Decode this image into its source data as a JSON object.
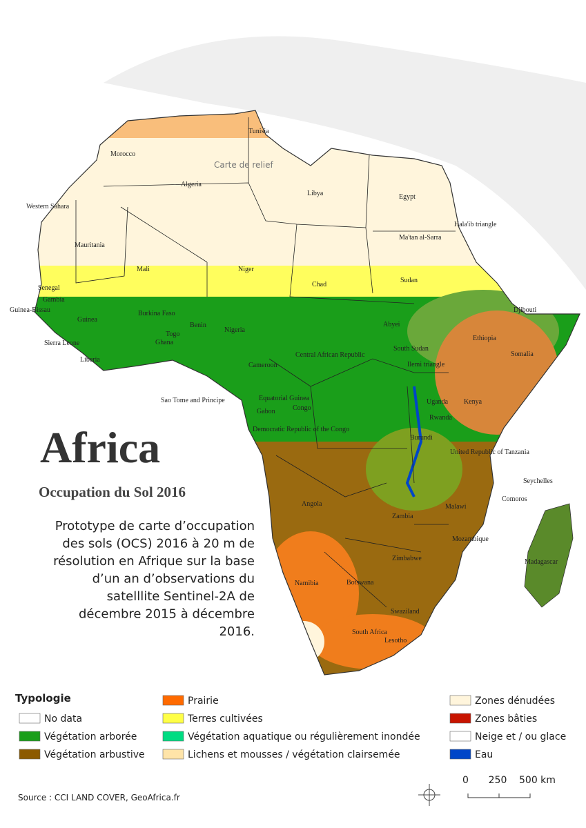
{
  "map": {
    "title": "Africa",
    "subtitle": "Occupation du Sol 2016",
    "description": [
      "Prototype de carte d’occupation",
      "des sols (OCS) 2016 à 20 m de",
      "résolution en Afrique sur la base",
      "d’un an d’observations du",
      "satelllite  Sentinel-2A de",
      "décembre 2015 à décembre",
      "2016."
    ],
    "relief_label": "Carte de relief",
    "labels": [
      "Tunisia",
      "Morocco",
      "Algeria",
      "Libya",
      "Egypt",
      "Western Sahara",
      "Mauritania",
      "Mali",
      "Niger",
      "Chad",
      "Sudan",
      "Ma'tan al-Sarra",
      "Hala'ib triangle",
      "Senegal",
      "Gambia",
      "Guinea-Bissau",
      "Guinea",
      "Sierra Leone",
      "Liberia",
      "Burkina Faso",
      "Ghana",
      "Togo",
      "Benin",
      "Nigeria",
      "Cameroon",
      "Central African Republic",
      "Abyei",
      "South Sudan",
      "Ilemi triangle",
      "Ethiopia",
      "Djibouti",
      "Somalia",
      "Kenya",
      "Uganda",
      "Rwanda",
      "Burundi",
      "Sao Tome and Principe",
      "Equatorial Guinea",
      "Gabon",
      "Congo",
      "Democratic Republic of the Congo",
      "United Republic of Tanzania",
      "Seychelles",
      "Comoros",
      "Malawi",
      "Mozambique",
      "Zambia",
      "Angola",
      "Zimbabwe",
      "Namibia",
      "Botswana",
      "Swaziland",
      "South Africa",
      "Lesotho",
      "Madagascar"
    ],
    "legend": {
      "title": "Typologie",
      "items": [
        {
          "name": "No data",
          "color": "#ffffff"
        },
        {
          "name": "Végétation arborée",
          "color": "#1a9e1a"
        },
        {
          "name": "Végétation arbustive",
          "color": "#8c5a00"
        },
        {
          "name": "Prairie",
          "color": "#ff6a00"
        },
        {
          "name": "Terres cultivées",
          "color": "#ffff46"
        },
        {
          "name": "Végétation aquatique ou régulièrement inondée",
          "color": "#00dc82"
        },
        {
          "name": "Lichens et mousses / végétation clairsemée",
          "color": "#ffe4a8"
        },
        {
          "name": "Zones dénudées",
          "color": "#fff5dc"
        },
        {
          "name": "Zones bâties",
          "color": "#c81400"
        },
        {
          "name": "Neige et / ou glace",
          "color": "#ffffff"
        },
        {
          "name": "Eau",
          "color": "#0046c8"
        }
      ]
    },
    "scale": [
      "0",
      "250",
      "500 km"
    ],
    "source": "Source : CCI LAND COVER, GeoAfrica.fr"
  }
}
